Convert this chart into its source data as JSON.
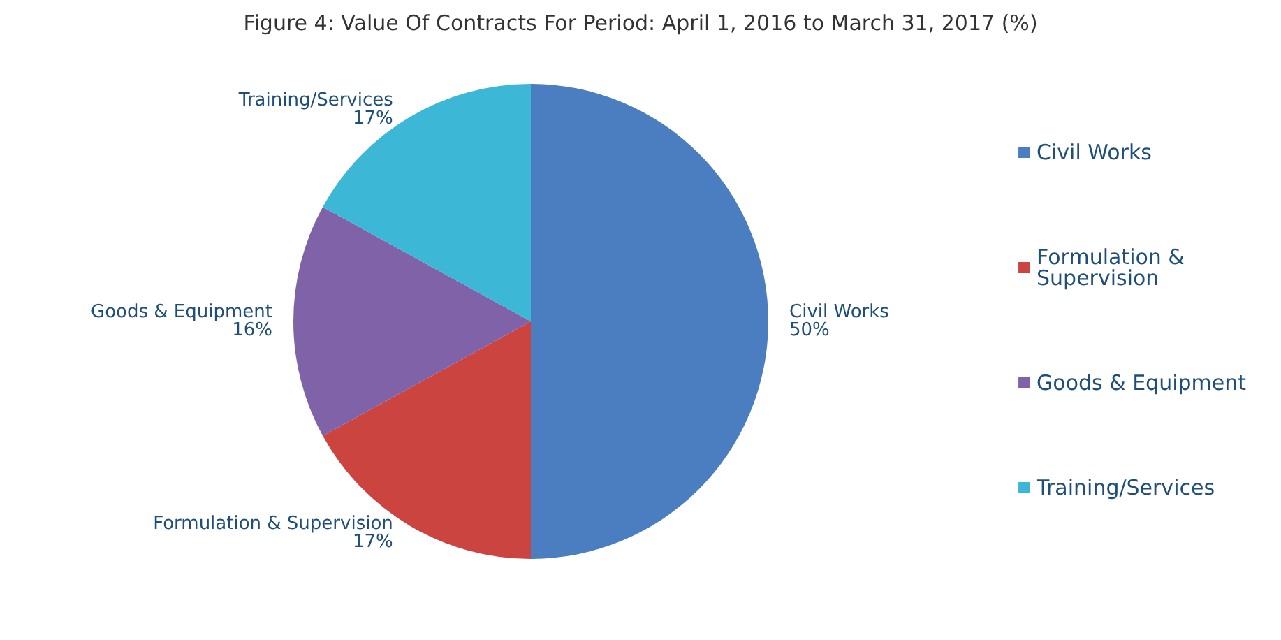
{
  "chart_data": {
    "type": "pie",
    "title": "Figure 4: Value Of Contracts For Period: April 1, 2016 to March 31, 2017 (%)",
    "categories": [
      "Civil Works",
      "Formulation & Supervision",
      "Goods & Equipment",
      "Training/Services"
    ],
    "values": [
      50,
      17,
      16,
      17
    ],
    "value_labels": [
      "50%",
      "17%",
      "16%",
      "17%"
    ],
    "colors": [
      "#4a7ec0",
      "#cc4440",
      "#8062a8",
      "#3cb8d6"
    ],
    "legend": "right"
  }
}
